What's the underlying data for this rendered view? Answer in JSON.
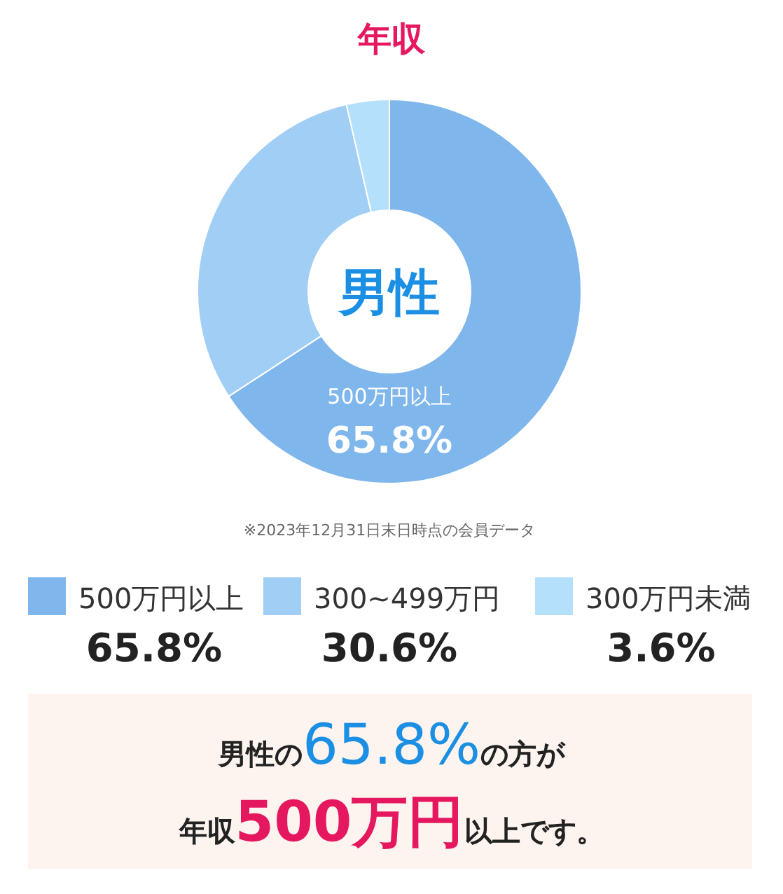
{
  "chart_data": {
    "type": "donut",
    "title": "年収",
    "categories": [
      "500万円以上",
      "300~499万円",
      "300万円未満"
    ],
    "values": [
      65.8,
      30.6,
      3.6
    ],
    "colors": [
      "#7fb7ec",
      "#a0cef5",
      "#b5e0fc"
    ],
    "value_labels": [
      "65.8%",
      "30.6%",
      "3.6%"
    ],
    "legend": "bottom",
    "annotations": [
      "男性",
      "※2023年12月31日末日時点の会員データ",
      "男性の65.8%の方が",
      "年収500万円以上です。"
    ]
  }
}
